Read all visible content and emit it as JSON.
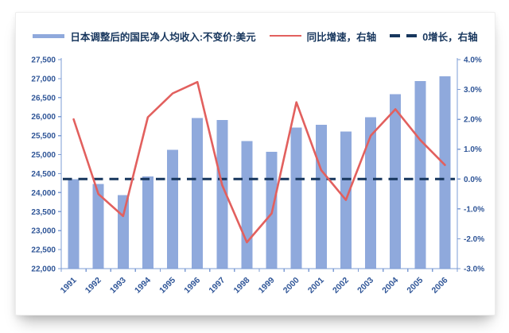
{
  "legend": {
    "items": [
      {
        "label": "日本调整后的国民净人均收入:不变价:美元",
        "swatch": "bar-swatch",
        "color": "#8FA9DC"
      },
      {
        "label": "同比增速，右轴",
        "swatch": "line-swatch",
        "color": "#E2605E"
      },
      {
        "label": "0增长，右轴",
        "swatch": "dashed-swatch",
        "color": "#17365D"
      }
    ]
  },
  "chart_data": {
    "type": "bar",
    "title": "",
    "categories": [
      "1991",
      "1992",
      "1993",
      "1994",
      "1995",
      "1996",
      "1997",
      "1998",
      "1999",
      "2000",
      "2001",
      "2002",
      "2003",
      "2004",
      "2005",
      "2006"
    ],
    "series": [
      {
        "name": "日本调整后的国民净人均收入:不变价:美元",
        "type": "bar",
        "axis": "left",
        "color": "#8FA9DC",
        "values": [
          24350,
          24230,
          23930,
          24430,
          25130,
          25960,
          25910,
          25360,
          25070,
          25715,
          25790,
          25610,
          25980,
          26590,
          26940,
          27065
        ]
      },
      {
        "name": "同比增速，右轴",
        "type": "line",
        "axis": "right",
        "color": "#E2605E",
        "values": [
          2.0,
          -0.5,
          -1.24,
          2.07,
          2.87,
          3.25,
          -0.2,
          -2.12,
          -1.15,
          2.57,
          0.3,
          -0.7,
          1.45,
          2.34,
          1.31,
          0.47
        ]
      },
      {
        "name": "0增长，右轴",
        "type": "constant-line",
        "style": "dashed",
        "axis": "right",
        "color": "#17365D",
        "value": 0
      }
    ],
    "left_axis": {
      "min": 22000,
      "max": 27500,
      "step": 500,
      "tick_labels": [
        "22,000",
        "22,500",
        "23,000",
        "23,500",
        "24,000",
        "24,500",
        "25,000",
        "25,500",
        "26,000",
        "26,500",
        "27,000",
        "27,500"
      ]
    },
    "right_axis": {
      "min": -3.0,
      "max": 4.0,
      "step": 1.0,
      "tick_labels": [
        "-3.0%",
        "-2.0%",
        "-1.0%",
        "0.0%",
        "1.0%",
        "2.0%",
        "3.0%",
        "4.0%"
      ]
    },
    "grid": false,
    "legend_position": "top",
    "styles": {
      "axis_color": "#7E9CD4",
      "tick_label_color": "#2F5597",
      "category_label_color": "#2F5597",
      "legend_text_color": "#17365D",
      "bar_color": "#8FA9DC",
      "line_color": "#E2605E",
      "zero_line_color": "#17365D"
    }
  }
}
